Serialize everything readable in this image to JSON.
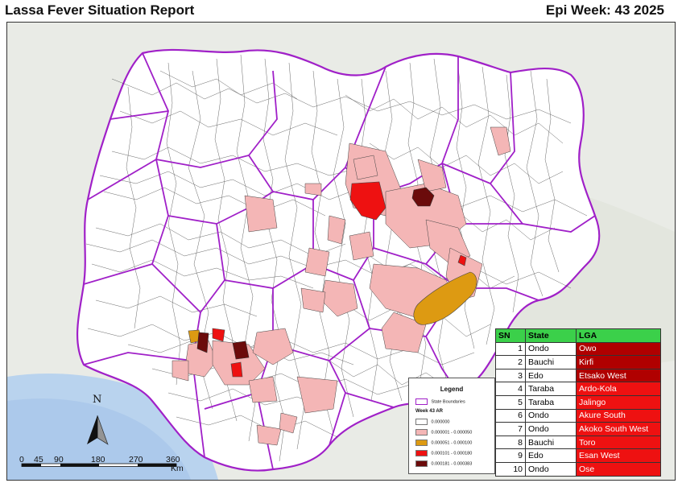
{
  "header": {
    "title": "Lassa Fever Situation Report",
    "week": "Epi Week: 43 2025"
  },
  "legend": {
    "title": "Legend",
    "boundary_label": "State Boundaries",
    "subtitle": "Week 43 AR",
    "classes": [
      {
        "label": "0.000000",
        "color": "#ffffff"
      },
      {
        "label": "0.000001 - 0.000050",
        "color": "#f4b6b6"
      },
      {
        "label": "0.000051 - 0.000100",
        "color": "#dd9a12"
      },
      {
        "label": "0.000101 - 0.000180",
        "color": "#ee1111"
      },
      {
        "label": "0.000181 - 0.000383",
        "color": "#6b0b0b"
      }
    ],
    "boundary_color": "#a020c8"
  },
  "table": {
    "headers": [
      "SN",
      "State",
      "LGA"
    ],
    "rows": [
      {
        "sn": "1",
        "state": "Ondo",
        "lga": "Owo",
        "color": "#b00000"
      },
      {
        "sn": "2",
        "state": "Bauchi",
        "lga": "Kirfi",
        "color": "#b00000"
      },
      {
        "sn": "3",
        "state": "Edo",
        "lga": "Etsako West",
        "color": "#b00000"
      },
      {
        "sn": "4",
        "state": "Taraba",
        "lga": "Ardo-Kola",
        "color": "#ee1111"
      },
      {
        "sn": "5",
        "state": "Taraba",
        "lga": "Jalingo",
        "color": "#ee1111"
      },
      {
        "sn": "6",
        "state": "Ondo",
        "lga": "Akure South",
        "color": "#ee1111"
      },
      {
        "sn": "7",
        "state": "Ondo",
        "lga": "Akoko South West",
        "color": "#ee1111"
      },
      {
        "sn": "8",
        "state": "Bauchi",
        "lga": "Toro",
        "color": "#ee1111"
      },
      {
        "sn": "9",
        "state": "Edo",
        "lga": "Esan West",
        "color": "#ee1111"
      },
      {
        "sn": "10",
        "state": "Ondo",
        "lga": "Ose",
        "color": "#ee1111"
      }
    ],
    "header_color": "#3bd04a"
  },
  "scale_bar": {
    "labels": [
      "0",
      "45",
      "90",
      "180",
      "270",
      "360"
    ],
    "unit": "Km"
  },
  "north_arrow": {
    "letter": "N"
  }
}
